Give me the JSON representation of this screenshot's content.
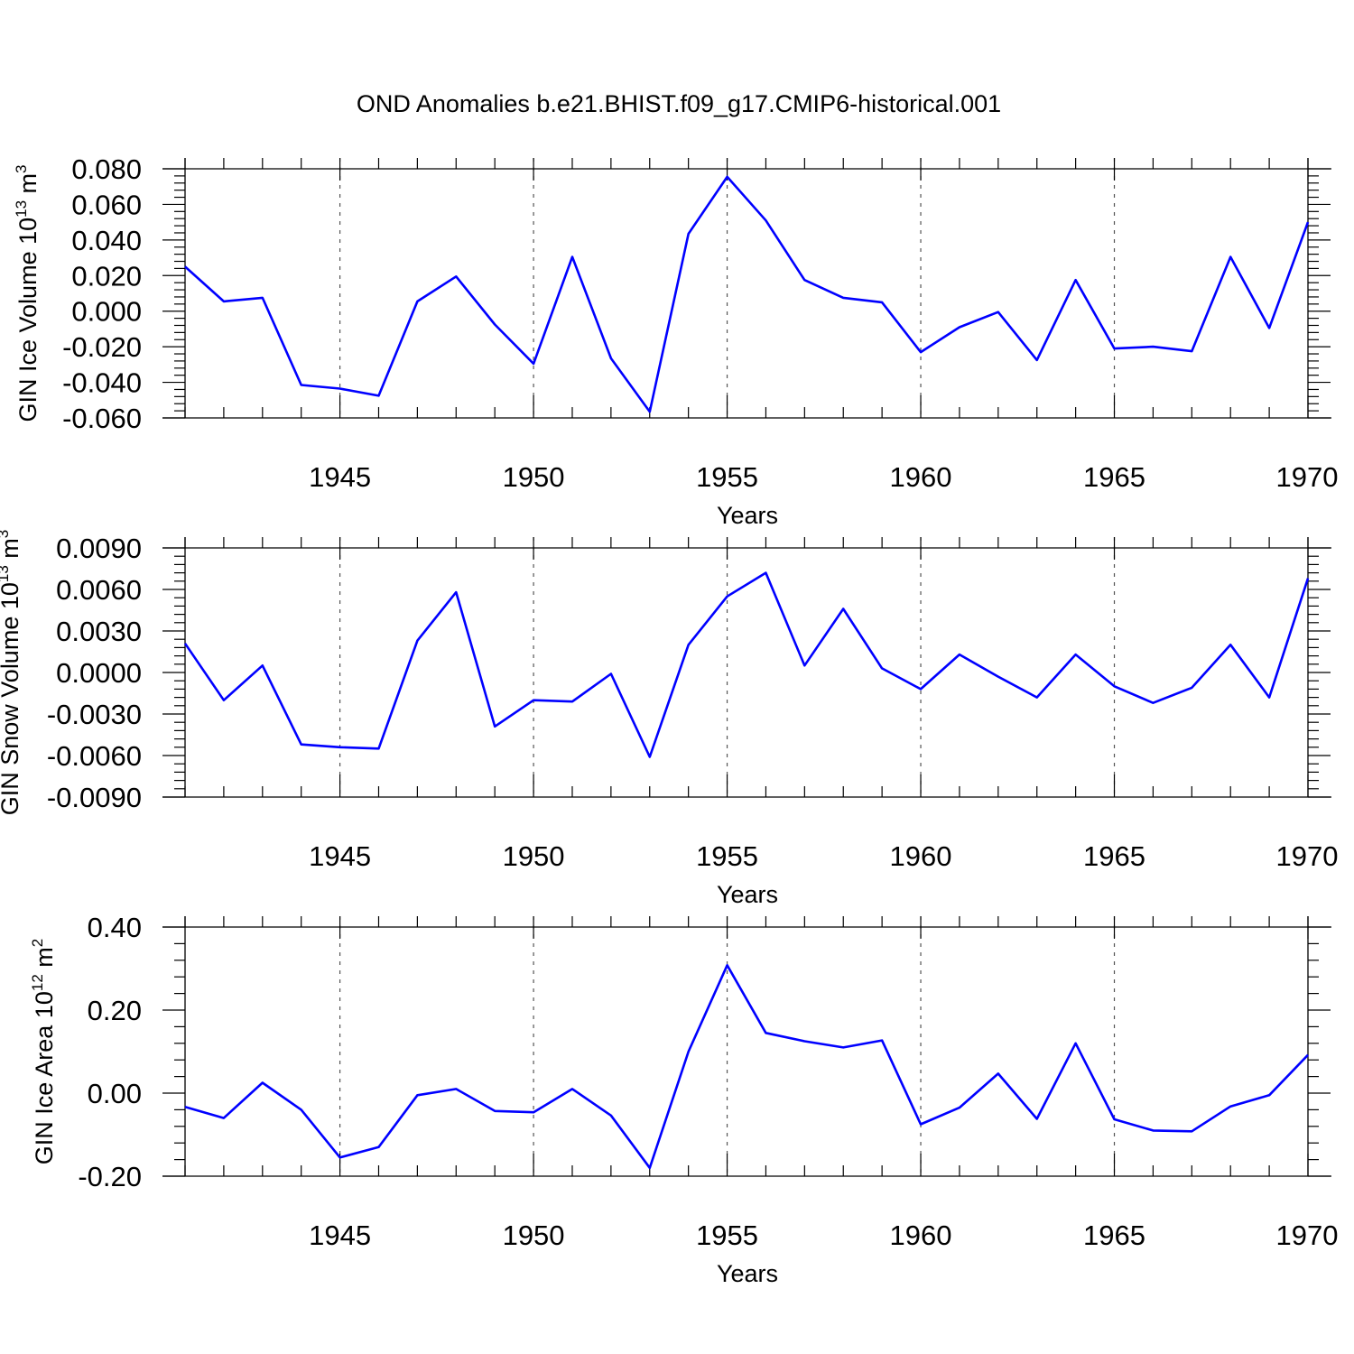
{
  "title": "OND Anomalies b.e21.BHIST.f09_g17.CMIP6-historical.001",
  "colors": {
    "line": "#0000ff",
    "frame": "#000000",
    "grid": "#555555"
  },
  "chart_data": [
    {
      "type": "line",
      "ylabel_main": "GIN Ice Volume 10",
      "ylabel_exp": "13",
      "ylabel_unit": " m",
      "ylabel_unit_exp": "3",
      "xlabel": "Years",
      "xlim": [
        1941,
        1970
      ],
      "ylim": [
        -0.06,
        0.08
      ],
      "xticks": [
        1945,
        1950,
        1955,
        1960,
        1965,
        1970
      ],
      "xtick_labels": [
        "1945",
        "1950",
        "1955",
        "1960",
        "1965",
        "1970"
      ],
      "yticks": [
        0.08,
        0.06,
        0.04,
        0.02,
        0.0,
        -0.02,
        -0.04,
        -0.06
      ],
      "ytick_labels": [
        "0.080",
        "0.060",
        "0.040",
        "0.020",
        "0.000",
        "-0.020",
        "-0.040",
        "-0.060"
      ],
      "grid": "dashed vertical at major x ticks",
      "series": [
        {
          "name": "GIN Ice Volume",
          "x": [
            1941,
            1942,
            1943,
            1944,
            1945,
            1946,
            1947,
            1948,
            1949,
            1950,
            1951,
            1952,
            1953,
            1954,
            1955,
            1956,
            1957,
            1958,
            1959,
            1960,
            1961,
            1962,
            1963,
            1964,
            1965,
            1966,
            1967,
            1968,
            1969,
            1970
          ],
          "values": [
            0.025,
            0.0055,
            0.0075,
            -0.0415,
            -0.0435,
            -0.0475,
            0.0055,
            0.0195,
            -0.0075,
            -0.0295,
            0.0305,
            -0.0265,
            -0.0565,
            0.0435,
            0.0755,
            0.051,
            0.0175,
            0.0075,
            0.005,
            -0.023,
            -0.009,
            -0.0005,
            -0.0275,
            0.0175,
            -0.021,
            -0.02,
            -0.0225,
            0.0305,
            -0.0095,
            0.05
          ]
        }
      ]
    },
    {
      "type": "line",
      "ylabel_main": "GIN Snow Volume 10",
      "ylabel_exp": "13",
      "ylabel_unit": " m",
      "ylabel_unit_exp": "3",
      "xlabel": "Years",
      "xlim": [
        1941,
        1970
      ],
      "ylim": [
        -0.009,
        0.009
      ],
      "xticks": [
        1945,
        1950,
        1955,
        1960,
        1965,
        1970
      ],
      "xtick_labels": [
        "1945",
        "1950",
        "1955",
        "1960",
        "1965",
        "1970"
      ],
      "yticks": [
        0.009,
        0.006,
        0.003,
        0.0,
        -0.003,
        -0.006,
        -0.009
      ],
      "ytick_labels": [
        "0.0090",
        "0.0060",
        "0.0030",
        "0.0000",
        "-0.0030",
        "-0.0060",
        "-0.0090"
      ],
      "grid": "dashed vertical at major x ticks",
      "series": [
        {
          "name": "GIN Snow Volume",
          "x": [
            1941,
            1942,
            1943,
            1944,
            1945,
            1946,
            1947,
            1948,
            1949,
            1950,
            1951,
            1952,
            1953,
            1954,
            1955,
            1956,
            1957,
            1958,
            1959,
            1960,
            1961,
            1962,
            1963,
            1964,
            1965,
            1966,
            1967,
            1968,
            1969,
            1970
          ],
          "values": [
            0.0021,
            -0.002,
            0.0005,
            -0.0052,
            -0.0054,
            -0.0055,
            0.0023,
            0.0058,
            -0.0039,
            -0.002,
            -0.0021,
            -0.0001,
            -0.0061,
            0.002,
            0.0055,
            0.0072,
            0.0005,
            0.0046,
            0.0003,
            -0.0012,
            0.0013,
            -0.0003,
            -0.0018,
            0.0013,
            -0.001,
            -0.0022,
            -0.0011,
            0.002,
            -0.0018,
            0.0068
          ]
        }
      ]
    },
    {
      "type": "line",
      "ylabel_main": "GIN Ice Area 10",
      "ylabel_exp": "12",
      "ylabel_unit": " m",
      "ylabel_unit_exp": "2",
      "xlabel": "Years",
      "xlim": [
        1941,
        1970
      ],
      "ylim": [
        -0.2,
        0.4
      ],
      "xticks": [
        1945,
        1950,
        1955,
        1960,
        1965,
        1970
      ],
      "xtick_labels": [
        "1945",
        "1950",
        "1955",
        "1960",
        "1965",
        "1970"
      ],
      "yticks": [
        0.4,
        0.2,
        0.0,
        -0.2
      ],
      "ytick_labels": [
        "0.40",
        "0.20",
        "0.00",
        "-0.20"
      ],
      "grid": "dashed vertical at major x ticks",
      "series": [
        {
          "name": "GIN Ice Area",
          "x": [
            1941,
            1942,
            1943,
            1944,
            1945,
            1946,
            1947,
            1948,
            1949,
            1950,
            1951,
            1952,
            1953,
            1954,
            1955,
            1956,
            1957,
            1958,
            1959,
            1960,
            1961,
            1962,
            1963,
            1964,
            1965,
            1966,
            1967,
            1968,
            1969,
            1970
          ],
          "values": [
            -0.033,
            -0.06,
            0.025,
            -0.04,
            -0.155,
            -0.13,
            -0.005,
            0.01,
            -0.043,
            -0.046,
            0.01,
            -0.054,
            -0.18,
            0.1,
            0.308,
            0.145,
            0.125,
            0.11,
            0.127,
            -0.075,
            -0.035,
            0.047,
            -0.062,
            0.12,
            -0.063,
            -0.09,
            -0.092,
            -0.032,
            -0.005,
            0.092
          ]
        }
      ]
    }
  ]
}
